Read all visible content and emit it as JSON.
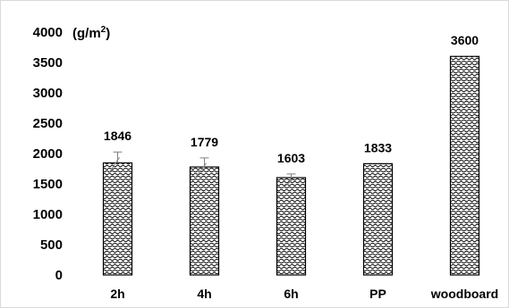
{
  "chart_data": {
    "type": "bar",
    "categories": [
      "2h",
      "4h",
      "6h",
      "PP",
      "woodboard"
    ],
    "values": [
      1846,
      1779,
      1603,
      1833,
      3600
    ],
    "error_bars": [
      180,
      150,
      60,
      null,
      null
    ],
    "data_labels": [
      "1846",
      "1779",
      "1603",
      "1833",
      "3600"
    ],
    "unit_label": {
      "text": "(g/m",
      "superscript": "2",
      "suffix": ")"
    },
    "ylim": [
      0,
      4000
    ],
    "yticks": [
      0,
      500,
      1000,
      1500,
      2000,
      2500,
      3000,
      3500,
      4000
    ],
    "grid": false,
    "bar_fill": "dotted-pattern",
    "bar_color": "#ffffff",
    "bar_edge_color": "#000000"
  }
}
